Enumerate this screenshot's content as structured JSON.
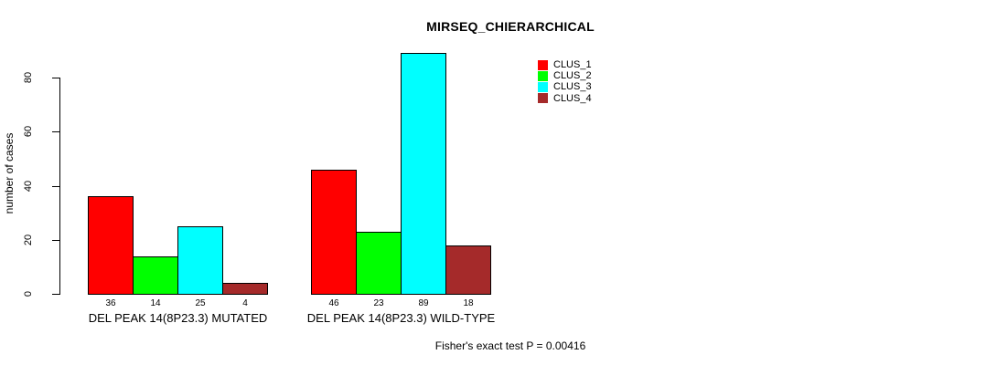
{
  "title": "MIRSEQ_CHIERARCHICAL",
  "footnote": "Fisher's exact test P = 0.00416",
  "chart_data": {
    "type": "bar",
    "title": "MIRSEQ_CHIERARCHICAL",
    "xlabel": "",
    "ylabel": "number of cases",
    "yticks": [
      0,
      20,
      40,
      60,
      80
    ],
    "ylim": [
      0,
      89
    ],
    "grid": false,
    "legend_position": "top-right",
    "bar_value_labels": true,
    "categories": [
      "DEL PEAK 14(8P23.3) MUTATED",
      "DEL PEAK 14(8P23.3) WILD-TYPE"
    ],
    "series": [
      {
        "name": "CLUS_1",
        "color": "#FF0000",
        "values": [
          36,
          46
        ]
      },
      {
        "name": "CLUS_2",
        "color": "#00FF00",
        "values": [
          14,
          23
        ]
      },
      {
        "name": "CLUS_3",
        "color": "#00FFFF",
        "values": [
          25,
          89
        ]
      },
      {
        "name": "CLUS_4",
        "color": "#A52A2A",
        "values": [
          4,
          18
        ]
      }
    ],
    "footnote": "Fisher's exact test P = 0.00416",
    "colors": {
      "axis": "#000000",
      "text": "#000000",
      "background": "#FFFFFF"
    }
  }
}
